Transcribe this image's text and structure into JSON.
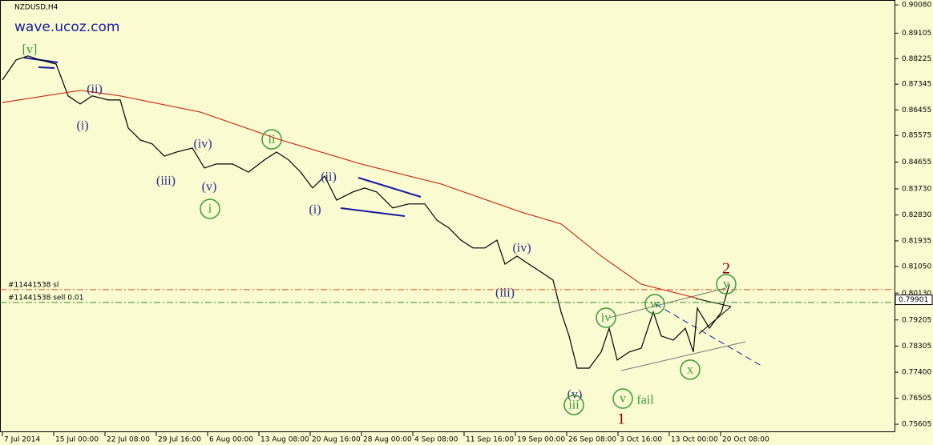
{
  "chart_data": {
    "type": "line",
    "title": "NZDUSD,H4",
    "watermark": "wave.ucoz.com",
    "background": "#fbfbd2",
    "xlim": [
      0,
      557
    ],
    "ylim": [
      0.7533,
      0.9025
    ],
    "xticks": [
      {
        "value": 0,
        "label": "7 Jul 2014"
      },
      {
        "value": 32,
        "label": "15 Jul 00:00"
      },
      {
        "value": 64,
        "label": "22 Jul 08:00"
      },
      {
        "value": 96,
        "label": "29 Jul 16:00"
      },
      {
        "value": 128,
        "label": "6 Aug 00:00"
      },
      {
        "value": 160,
        "label": "13 Aug 08:00"
      },
      {
        "value": 192,
        "label": "20 Aug 16:00"
      },
      {
        "value": 224,
        "label": "28 Aug 00:00"
      },
      {
        "value": 256,
        "label": "4 Sep 08:00"
      },
      {
        "value": 288,
        "label": "11 Sep 16:00"
      },
      {
        "value": 320,
        "label": "19 Sep 00:00"
      },
      {
        "value": 352,
        "label": "26 Sep 08:00"
      },
      {
        "value": 384,
        "label": "3 Oct 16:00"
      },
      {
        "value": 416,
        "label": "13 Oct 00:00"
      },
      {
        "value": 448,
        "label": "20 Oct 08:00"
      }
    ],
    "yticks": [
      {
        "value": 0.9008,
        "label": "0.90080"
      },
      0.89105,
      0.88225,
      0.87345,
      0.86455,
      0.85575,
      0.84655,
      {
        "value": 0.8373,
        "label": "0.83730"
      },
      {
        "value": 0.8283,
        "label": "0.82830"
      },
      0.81935,
      {
        "value": 0.8105,
        "label": "0.81050"
      },
      {
        "value": 0.8013,
        "label": "0.80130"
      },
      0.79205,
      0.78305,
      {
        "value": 0.774,
        "label": "0.77400"
      },
      0.76505,
      0.75605
    ],
    "series": [
      {
        "color": "#000000",
        "x": [
          0,
          8.5,
          16,
          23.5,
          33.5,
          41,
          48.5,
          56,
          66,
          73.5,
          78.5,
          86,
          93.5,
          101,
          108.5,
          118.5,
          126,
          133.5,
          143.5,
          153.5,
          163.5,
          171,
          178.5,
          186,
          193.5,
          201,
          208.5,
          218.5,
          226,
          233.5,
          243.5,
          253.5,
          263.5,
          271,
          278.5,
          286,
          293.5,
          301,
          308.5,
          313.5,
          321,
          328.5,
          336,
          343.5,
          348.5,
          353.5,
          358.5,
          366,
          373.5,
          378.5,
          383.5,
          391,
          398.5,
          406,
          411,
          418.5,
          426,
          431,
          433.5,
          441,
          448.5,
          453.5
        ],
        "values": [
          0.8749,
          0.8818,
          0.8832,
          0.8818,
          0.8804,
          0.8694,
          0.8666,
          0.8694,
          0.868,
          0.868,
          0.8583,
          0.8542,
          0.8528,
          0.8486,
          0.85,
          0.8514,
          0.8445,
          0.8459,
          0.8459,
          0.8431,
          0.8473,
          0.85,
          0.8473,
          0.8431,
          0.8376,
          0.8417,
          0.8334,
          0.8362,
          0.8376,
          0.8362,
          0.8307,
          0.8321,
          0.8321,
          0.8265,
          0.8238,
          0.8196,
          0.8169,
          0.8169,
          0.8196,
          0.8113,
          0.8141,
          0.8113,
          0.8086,
          0.8058,
          0.7948,
          0.7865,
          0.7754,
          0.7754,
          0.781,
          0.7892,
          0.7782,
          0.781,
          0.7823,
          0.7948,
          0.7865,
          0.7851,
          0.7892,
          0.781,
          0.7961,
          0.7892,
          0.7948,
          0.8044
        ]
      },
      {
        "color": "#c8321e",
        "x": [
          0,
          48.5,
          73.5,
          123.5,
          173.5,
          223.5,
          273.5,
          323.5,
          348.5,
          373.5,
          398.5,
          433.5
        ],
        "values": [
          0.8671,
          0.8713,
          0.8694,
          0.8638,
          0.8542,
          0.8459,
          0.839,
          0.8293,
          0.8252,
          0.8141,
          0.8044,
          0.7995
        ]
      }
    ],
    "levels": [
      {
        "label": "#11441538 sl",
        "value": 0.8025,
        "color": "#e0502a"
      },
      {
        "label": "#11441538 sell 0.01",
        "value": 0.7981,
        "color": "#2f8f2f"
      }
    ],
    "current_price": 0.79901,
    "annotations": [
      {
        "text": "[v]",
        "x": 17,
        "y": 0.8854,
        "color": "#3a9a3a",
        "circled": false
      },
      {
        "text": "(ii)",
        "x": 57.5,
        "y": 0.8718,
        "color": "#2a2a8a",
        "circled": false
      },
      {
        "text": "(i)",
        "x": 50,
        "y": 0.8591,
        "color": "#2a2a8a",
        "circled": false
      },
      {
        "text": "(iii)",
        "x": 102,
        "y": 0.8401,
        "color": "#2a2a8a",
        "circled": false
      },
      {
        "text": "(iv)",
        "x": 125,
        "y": 0.8528,
        "color": "#2a2a8a",
        "circled": false
      },
      {
        "text": "(v)",
        "x": 129,
        "y": 0.8381,
        "color": "#2a2a8a",
        "circled": false
      },
      {
        "text": "i",
        "x": 129.5,
        "y": 0.8304,
        "color": "#3a9a3a",
        "circled": true
      },
      {
        "text": "ii",
        "x": 168,
        "y": 0.8544,
        "color": "#3a9a3a",
        "circled": true
      },
      {
        "text": "(ii)",
        "x": 203.5,
        "y": 0.8415,
        "color": "#2a2a8a",
        "circled": false
      },
      {
        "text": "(i)",
        "x": 195,
        "y": 0.8301,
        "color": "#2a2a8a",
        "circled": false
      },
      {
        "text": "(iii)",
        "x": 313.5,
        "y": 0.8014,
        "color": "#2a2a8a",
        "circled": false
      },
      {
        "text": "(iv)",
        "x": 324,
        "y": 0.8169,
        "color": "#2a2a8a",
        "circled": false
      },
      {
        "text": "(v)",
        "x": 357,
        "y": 0.7663,
        "color": "#2a2a8a",
        "circled": false
      },
      {
        "text": "iii",
        "x": 356.5,
        "y": 0.7627,
        "color": "#3a9a3a",
        "circled": true
      },
      {
        "text": "iv",
        "x": 376.5,
        "y": 0.7928,
        "color": "#3a9a3a",
        "circled": true
      },
      {
        "text": "v",
        "x": 387,
        "y": 0.7649,
        "color": "#3a9a3a",
        "circled": true
      },
      {
        "text": "fail",
        "x": 401,
        "y": 0.7644,
        "color": "#3a9a3a",
        "circled": false
      },
      {
        "text": "1",
        "x": 386,
        "y": 0.7578,
        "color": "#8b0000",
        "circled": false
      },
      {
        "text": "w",
        "x": 407,
        "y": 0.7975,
        "color": "#3a9a3a",
        "circled": true
      },
      {
        "text": "x",
        "x": 429,
        "y": 0.7749,
        "color": "#3a9a3a",
        "circled": true
      },
      {
        "text": "y",
        "x": 451.5,
        "y": 0.8044,
        "color": "#3a9a3a",
        "circled": true
      },
      {
        "text": "2",
        "x": 451.5,
        "y": 0.8097,
        "color": "#8b0000",
        "circled": false
      }
    ]
  }
}
